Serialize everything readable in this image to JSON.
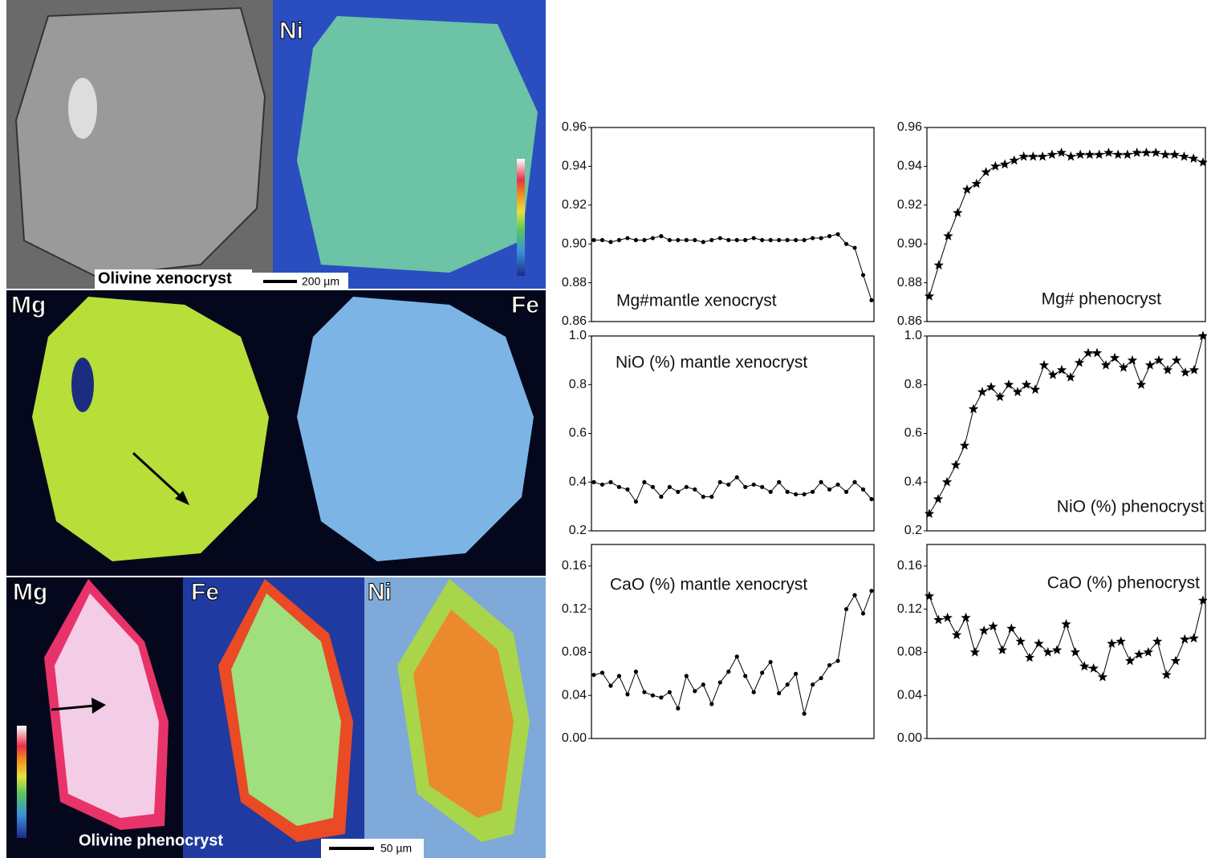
{
  "images": {
    "xenocryst": {
      "labels": [
        "Ni",
        "Mg",
        "Fe"
      ],
      "caption": "Olivine xenocryst",
      "scale_bar": "200 µm"
    },
    "phenocryst": {
      "labels": [
        "Mg",
        "Fe",
        "Ni"
      ],
      "caption": "Olivine phenocryst",
      "scale_bar": "50 µm"
    }
  },
  "chart_data": [
    {
      "type": "line",
      "title": "Mg#mantle xenocryst",
      "marker": "dot",
      "color": "#000000",
      "ylim": [
        0.86,
        0.96
      ],
      "yticks": [
        0.86,
        0.88,
        {
          "value": 0.9,
          "label": "0.90"
        },
        0.92,
        0.94,
        0.96
      ],
      "values": [
        0.902,
        0.902,
        0.901,
        0.902,
        0.903,
        0.902,
        0.902,
        0.903,
        0.904,
        0.902,
        0.902,
        0.902,
        0.902,
        0.901,
        0.902,
        0.903,
        0.902,
        0.902,
        0.902,
        0.903,
        0.902,
        0.902,
        0.902,
        0.902,
        0.902,
        0.902,
        0.903,
        0.903,
        0.904,
        0.905,
        0.9,
        0.898,
        0.884,
        0.871
      ]
    },
    {
      "type": "line",
      "title": "Mg# phenocryst",
      "marker": "star",
      "color": "#000000",
      "ylim": [
        0.86,
        0.96
      ],
      "yticks": [
        0.86,
        0.88,
        {
          "value": 0.9,
          "label": "0.90"
        },
        0.92,
        0.94,
        0.96
      ],
      "values": [
        0.873,
        0.889,
        0.904,
        0.916,
        0.928,
        0.931,
        0.937,
        0.94,
        0.941,
        0.943,
        0.945,
        0.945,
        0.945,
        0.946,
        0.947,
        0.945,
        0.946,
        0.946,
        0.946,
        0.947,
        0.946,
        0.946,
        0.947,
        0.947,
        0.947,
        0.946,
        0.946,
        0.945,
        0.944,
        0.942
      ]
    },
    {
      "type": "line",
      "title": "NiO (%) mantle xenocryst",
      "marker": "dot",
      "color": "#000000",
      "ylim": [
        0.2,
        1.0
      ],
      "yticks": [
        0.2,
        0.4,
        0.6,
        0.8,
        {
          "value": 1.0,
          "label": "1.0"
        }
      ],
      "values": [
        0.4,
        0.39,
        0.4,
        0.38,
        0.37,
        0.32,
        0.4,
        0.38,
        0.34,
        0.38,
        0.36,
        0.38,
        0.37,
        0.34,
        0.34,
        0.4,
        0.39,
        0.42,
        0.38,
        0.39,
        0.38,
        0.36,
        0.4,
        0.36,
        0.35,
        0.35,
        0.36,
        0.4,
        0.37,
        0.39,
        0.36,
        0.4,
        0.37,
        0.33
      ]
    },
    {
      "type": "line",
      "title": "NiO (%) phenocryst",
      "marker": "star",
      "color": "#000000",
      "ylim": [
        0.2,
        1.0
      ],
      "yticks": [
        0.2,
        0.4,
        0.6,
        0.8,
        {
          "value": 1.0,
          "label": "1.0"
        }
      ],
      "values": [
        0.27,
        0.33,
        0.4,
        0.47,
        0.55,
        0.7,
        0.77,
        0.79,
        0.75,
        0.8,
        0.77,
        0.8,
        0.78,
        0.88,
        0.84,
        0.86,
        0.83,
        0.89,
        0.93,
        0.93,
        0.88,
        0.91,
        0.87,
        0.9,
        0.8,
        0.88,
        0.9,
        0.86,
        0.9,
        0.85,
        0.86,
        1.0
      ]
    },
    {
      "type": "line",
      "title": "CaO (%) mantle xenocryst",
      "marker": "dot",
      "color": "#000000",
      "ylim": [
        0,
        0.18
      ],
      "yticks": [
        {
          "value": 0,
          "label": "0.00"
        },
        0.04,
        0.08,
        0.12,
        0.16
      ],
      "values": [
        0.059,
        0.061,
        0.049,
        0.058,
        0.041,
        0.062,
        0.043,
        0.04,
        0.038,
        0.043,
        0.028,
        0.058,
        0.044,
        0.05,
        0.032,
        0.052,
        0.062,
        0.076,
        0.058,
        0.043,
        0.061,
        0.071,
        0.042,
        0.05,
        0.06,
        0.023,
        0.05,
        0.056,
        0.068,
        0.072,
        0.12,
        0.133,
        0.116,
        0.137
      ]
    },
    {
      "type": "line",
      "title": "CaO (%) phenocryst",
      "marker": "star",
      "color": "#000000",
      "ylim": [
        0,
        0.18
      ],
      "yticks": [
        {
          "value": 0,
          "label": "0.00"
        },
        0.04,
        0.08,
        0.12,
        0.16
      ],
      "values": [
        0.132,
        0.11,
        0.112,
        0.096,
        0.112,
        0.08,
        0.1,
        0.104,
        0.082,
        0.102,
        0.09,
        0.075,
        0.088,
        0.08,
        0.082,
        0.106,
        0.08,
        0.067,
        0.065,
        0.057,
        0.088,
        0.09,
        0.072,
        0.078,
        0.08,
        0.09,
        0.059,
        0.072,
        0.092,
        0.093,
        0.128
      ]
    }
  ]
}
